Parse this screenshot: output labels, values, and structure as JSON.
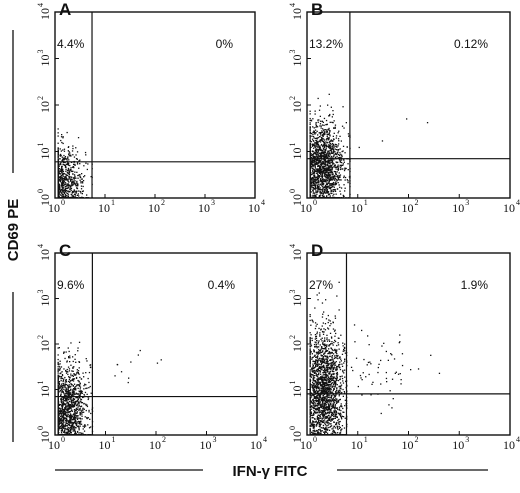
{
  "chart_data": [
    {
      "type": "scatter",
      "panel": "A",
      "x_scale": "log",
      "y_scale": "log",
      "xlim": [
        1,
        10000
      ],
      "ylim": [
        1,
        10000
      ],
      "x_ticks": [
        "10",
        "10",
        "10",
        "10",
        "10"
      ],
      "x_tick_exponents": [
        "0",
        "1",
        "2",
        "3",
        "4"
      ],
      "y_ticks": [
        "10",
        "10",
        "10",
        "10",
        "10"
      ],
      "y_tick_exponents": [
        "0",
        "1",
        "2",
        "3",
        "4"
      ],
      "quadrant_x": 5.5,
      "quadrant_y": 6,
      "upper_left_pct": "4.4%",
      "upper_right_pct": "0%",
      "populations": [
        {
          "region": "main",
          "n": 900,
          "x_log_mean": 0.15,
          "x_log_sd": 0.22,
          "y_log_mean": 0.35,
          "y_log_sd": 0.38
        }
      ]
    },
    {
      "type": "scatter",
      "panel": "B",
      "x_scale": "log",
      "y_scale": "log",
      "xlim": [
        1,
        10000
      ],
      "ylim": [
        1,
        10000
      ],
      "x_ticks": [
        "10",
        "10",
        "10",
        "10",
        "10"
      ],
      "x_tick_exponents": [
        "0",
        "1",
        "2",
        "3",
        "4"
      ],
      "y_ticks": [
        "10",
        "10",
        "10",
        "10",
        "10"
      ],
      "y_tick_exponents": [
        "0",
        "1",
        "2",
        "3",
        "4"
      ],
      "quadrant_x": 7,
      "quadrant_y": 7,
      "upper_left_pct": "13.2%",
      "upper_right_pct": "0.12%",
      "populations": [
        {
          "region": "main",
          "n": 1700,
          "x_log_mean": 0.28,
          "x_log_sd": 0.22,
          "y_log_mean": 0.65,
          "y_log_sd": 0.48
        },
        {
          "region": "sparse-right",
          "n": 5,
          "x_log_mean": 1.6,
          "x_log_sd": 0.4,
          "y_log_mean": 1.1,
          "y_log_sd": 0.3
        }
      ]
    },
    {
      "type": "scatter",
      "panel": "C",
      "x_scale": "log",
      "y_scale": "log",
      "xlim": [
        1,
        10000
      ],
      "ylim": [
        1,
        10000
      ],
      "x_ticks": [
        "10",
        "10",
        "10",
        "10",
        "10"
      ],
      "x_tick_exponents": [
        "0",
        "1",
        "2",
        "3",
        "4"
      ],
      "y_ticks": [
        "10",
        "10",
        "10",
        "10",
        "10"
      ],
      "y_tick_exponents": [
        "0",
        "1",
        "2",
        "3",
        "4"
      ],
      "quadrant_x": 5.5,
      "quadrant_y": 7,
      "upper_left_pct": "9.6%",
      "upper_right_pct": "0.4%",
      "populations": [
        {
          "region": "main",
          "n": 1500,
          "x_log_mean": 0.22,
          "x_log_sd": 0.2,
          "y_log_mean": 0.55,
          "y_log_sd": 0.5
        },
        {
          "region": "sparse-right",
          "n": 14,
          "x_log_mean": 1.2,
          "x_log_sd": 0.35,
          "y_log_mean": 1.55,
          "y_log_sd": 0.3
        }
      ]
    },
    {
      "type": "scatter",
      "panel": "D",
      "x_scale": "log",
      "y_scale": "log",
      "xlim": [
        1,
        10000
      ],
      "ylim": [
        1,
        10000
      ],
      "x_ticks": [
        "10",
        "10",
        "10",
        "10",
        "10"
      ],
      "x_tick_exponents": [
        "0",
        "1",
        "2",
        "3",
        "4"
      ],
      "y_ticks": [
        "10",
        "10",
        "10",
        "10",
        "10"
      ],
      "y_tick_exponents": [
        "0",
        "1",
        "2",
        "3",
        "4"
      ],
      "quadrant_x": 6,
      "quadrant_y": 8,
      "upper_left_pct": "27%",
      "upper_right_pct": "1.9%",
      "populations": [
        {
          "region": "main",
          "n": 2000,
          "x_log_mean": 0.32,
          "x_log_sd": 0.2,
          "y_log_mean": 0.9,
          "y_log_sd": 0.7
        },
        {
          "region": "sparse-right",
          "n": 70,
          "x_log_mean": 1.35,
          "x_log_sd": 0.45,
          "y_log_mean": 1.5,
          "y_log_sd": 0.4
        }
      ]
    }
  ],
  "y_axis_title": "CD69 PE",
  "x_axis_title": "IFN-γ FITC",
  "dot_color": "#111111"
}
